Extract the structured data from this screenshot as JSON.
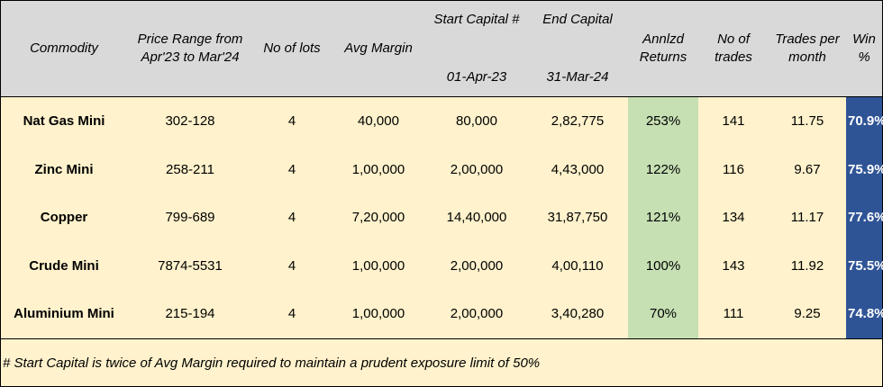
{
  "header": {
    "commodity": "Commodity",
    "price_range_l1": "Price Range from",
    "price_range_l2": "Apr'23 to Mar'24",
    "lots": "No of lots",
    "avg_margin": "Avg Margin",
    "start_capital": "Start Capital #",
    "start_date": "01-Apr-23",
    "end_capital": "End Capital",
    "end_date": "31-Mar-24",
    "returns_l1": "Annlzd",
    "returns_l2": "Returns",
    "trades_l1": "No of",
    "trades_l2": "trades",
    "tpm_l1": "Trades per",
    "tpm_l2": "month",
    "win": "Win %"
  },
  "rows": [
    {
      "commodity": "Nat Gas Mini",
      "price_range": "302-128",
      "lots": "4",
      "avg_margin": "40,000",
      "start_capital": "80,000",
      "end_capital": "2,82,775",
      "returns": "253%",
      "trades": "141",
      "tpm": "11.75",
      "win": "70.9%"
    },
    {
      "commodity": "Zinc Mini",
      "price_range": "258-211",
      "lots": "4",
      "avg_margin": "1,00,000",
      "start_capital": "2,00,000",
      "end_capital": "4,43,000",
      "returns": "122%",
      "trades": "116",
      "tpm": "9.67",
      "win": "75.9%"
    },
    {
      "commodity": "Copper",
      "price_range": "799-689",
      "lots": "4",
      "avg_margin": "7,20,000",
      "start_capital": "14,40,000",
      "end_capital": "31,87,750",
      "returns": "121%",
      "trades": "134",
      "tpm": "11.17",
      "win": "77.6%"
    },
    {
      "commodity": "Crude Mini",
      "price_range": "7874-5531",
      "lots": "4",
      "avg_margin": "1,00,000",
      "start_capital": "2,00,000",
      "end_capital": "4,00,110",
      "returns": "100%",
      "trades": "143",
      "tpm": "11.92",
      "win": "75.5%"
    },
    {
      "commodity": "Aluminium Mini",
      "price_range": "215-194",
      "lots": "4",
      "avg_margin": "1,00,000",
      "start_capital": "2,00,000",
      "end_capital": "3,40,280",
      "returns": "70%",
      "trades": "111",
      "tpm": "9.25",
      "win": "74.8%"
    }
  ],
  "footnote": "# Start Capital is twice of Avg Margin required to maintain a prudent exposure limit of 50%",
  "colors": {
    "header_bg": "#d9d9d9",
    "body_bg": "#fff2cc",
    "returns_bg": "#c6e0b4",
    "win_bg": "#2f5496",
    "win_text": "#ffffff"
  }
}
